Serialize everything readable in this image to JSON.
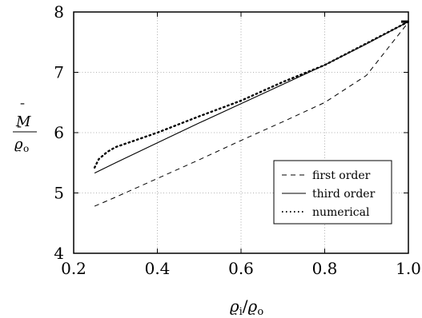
{
  "chart_data": {
    "type": "line",
    "title": "",
    "xlabel": {
      "base": "ϱ",
      "sub1": "i",
      "slash": "/",
      "base2": "ϱ",
      "sub2": "o"
    },
    "ylabel": {
      "num_base": "M",
      "num_bar": "¯",
      "den_base": "ϱ",
      "den_bar": "¯",
      "den_sub": "o"
    },
    "xlim": [
      0.2,
      1.0
    ],
    "ylim": [
      4,
      8
    ],
    "xticks": [
      0.2,
      0.4,
      0.6,
      0.8,
      1.0
    ],
    "xtick_labels": [
      "0.2",
      "0.4",
      "0.6",
      "0.8",
      "1.0"
    ],
    "yticks": [
      4,
      5,
      6,
      7,
      8
    ],
    "ytick_labels": [
      "4",
      "5",
      "6",
      "7",
      "8"
    ],
    "grid": true,
    "legend_position": "bottom-right",
    "series": [
      {
        "name": "first order",
        "style": "dashed",
        "x": [
          0.25,
          0.3,
          0.4,
          0.5,
          0.6,
          0.7,
          0.8,
          0.9,
          1.0
        ],
        "y": [
          4.78,
          4.93,
          5.24,
          5.55,
          5.87,
          6.18,
          6.5,
          6.95,
          7.83
        ]
      },
      {
        "name": "third order",
        "style": "solid",
        "x": [
          0.25,
          0.3,
          0.4,
          0.5,
          0.6,
          0.7,
          0.8,
          0.9,
          1.0
        ],
        "y": [
          5.33,
          5.5,
          5.83,
          6.16,
          6.48,
          6.8,
          7.12,
          7.47,
          7.84
        ]
      },
      {
        "name": "numerical",
        "style": "dotted",
        "x": [
          0.25,
          0.26,
          0.28,
          0.3,
          0.35,
          0.4,
          0.5,
          0.6,
          0.7,
          0.8,
          0.9,
          1.0
        ],
        "y": [
          5.42,
          5.56,
          5.68,
          5.76,
          5.88,
          6.0,
          6.27,
          6.53,
          6.84,
          7.12,
          7.48,
          7.84
        ]
      }
    ]
  }
}
